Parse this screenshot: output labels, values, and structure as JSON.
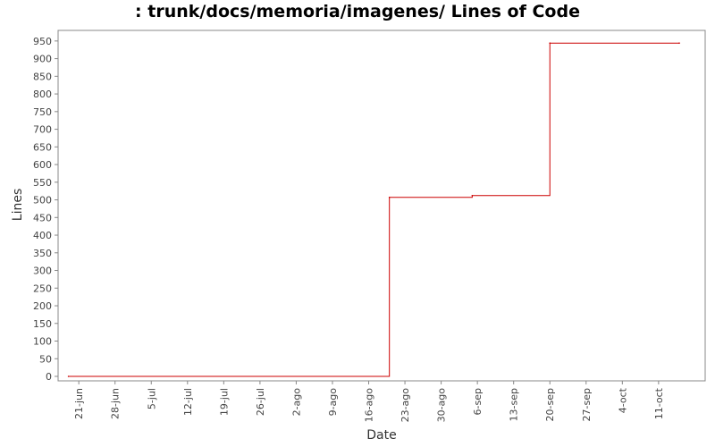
{
  "chart_data": {
    "type": "line",
    "title": ": trunk/docs/memoria/imagenes/ Lines of Code",
    "xlabel": "Date",
    "ylabel": "Lines",
    "ylim": [
      0,
      980
    ],
    "y_ticks": [
      0,
      50,
      100,
      150,
      200,
      250,
      300,
      350,
      400,
      450,
      500,
      550,
      600,
      650,
      700,
      750,
      800,
      850,
      900,
      950
    ],
    "xlim": [
      "2006-06-17",
      "2006-10-20"
    ],
    "x_ticks": [
      {
        "date": "2006-06-21",
        "label": "21-jun"
      },
      {
        "date": "2006-06-28",
        "label": "28-jun"
      },
      {
        "date": "2006-07-05",
        "label": "5-jul"
      },
      {
        "date": "2006-07-12",
        "label": "12-jul"
      },
      {
        "date": "2006-07-19",
        "label": "19-jul"
      },
      {
        "date": "2006-07-26",
        "label": "26-jul"
      },
      {
        "date": "2006-08-02",
        "label": "2-ago"
      },
      {
        "date": "2006-08-09",
        "label": "9-ago"
      },
      {
        "date": "2006-08-16",
        "label": "16-ago"
      },
      {
        "date": "2006-08-23",
        "label": "23-ago"
      },
      {
        "date": "2006-08-30",
        "label": "30-ago"
      },
      {
        "date": "2006-09-06",
        "label": "6-sep"
      },
      {
        "date": "2006-09-13",
        "label": "13-sep"
      },
      {
        "date": "2006-09-20",
        "label": "20-sep"
      },
      {
        "date": "2006-09-27",
        "label": "27-sep"
      },
      {
        "date": "2006-10-04",
        "label": "4-oct"
      },
      {
        "date": "2006-10-11",
        "label": "11-oct"
      }
    ],
    "grid": false,
    "step": true,
    "series": [
      {
        "color": "#cc0000",
        "points": [
          {
            "x": "2006-06-19",
            "y": 0
          },
          {
            "x": "2006-08-20",
            "y": 507
          },
          {
            "x": "2006-09-05",
            "y": 512
          },
          {
            "x": "2006-09-20",
            "y": 944
          },
          {
            "x": "2006-10-15",
            "y": 944
          }
        ]
      }
    ]
  }
}
